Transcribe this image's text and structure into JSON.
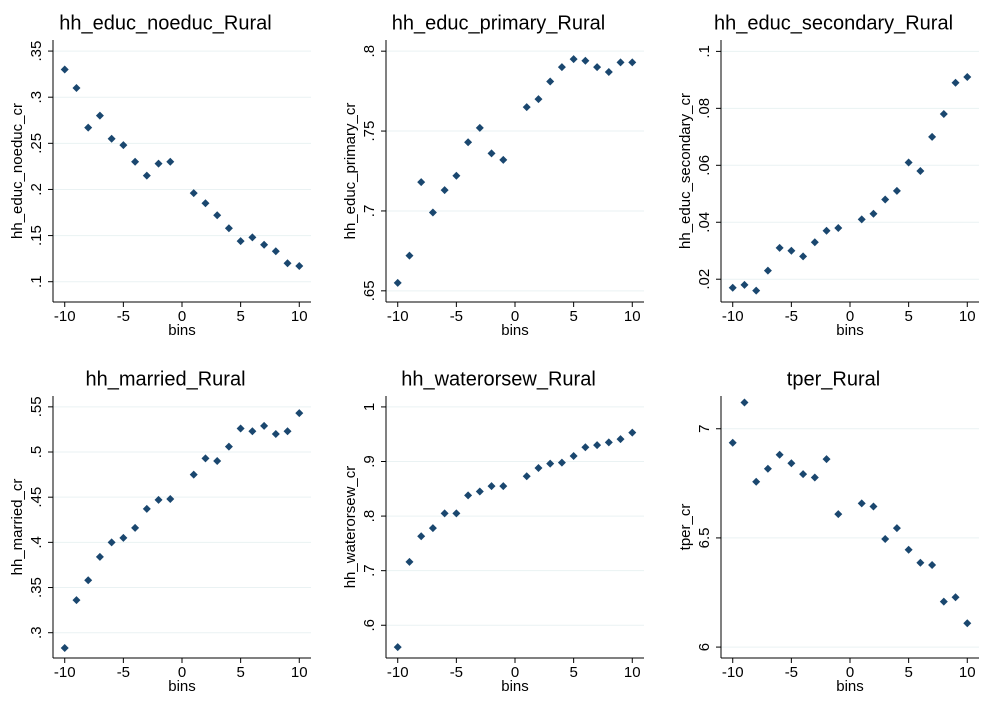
{
  "chart_data": [
    {
      "type": "scatter",
      "title": "hh_educ_noeduc_Rural",
      "x_label": "bins",
      "y_label": "hh_educ_noeduc_cr",
      "color": "#1a476f",
      "grid": true,
      "x": [
        -10,
        -9,
        -8,
        -7,
        -6,
        -5,
        -4,
        -3,
        -2,
        -1,
        1,
        2,
        3,
        4,
        5,
        6,
        7,
        8,
        9,
        10
      ],
      "values": [
        0.33,
        0.31,
        0.267,
        0.28,
        0.255,
        0.248,
        0.23,
        0.215,
        0.228,
        0.23,
        0.196,
        0.185,
        0.172,
        0.158,
        0.144,
        0.148,
        0.14,
        0.133,
        0.12,
        0.117
      ],
      "xlim": [
        -11,
        11
      ],
      "xticks": [
        -10,
        -5,
        0,
        5,
        10
      ],
      "ylim": [
        0.078,
        0.362
      ],
      "yticks": [
        {
          "value": 0.1,
          "label": ".1"
        },
        {
          "value": 0.15,
          "label": ".15"
        },
        {
          "value": 0.2,
          "label": ".2"
        },
        {
          "value": 0.25,
          "label": ".25"
        },
        {
          "value": 0.3,
          "label": ".3"
        },
        {
          "value": 0.35,
          "label": ".35"
        }
      ]
    },
    {
      "type": "scatter",
      "title": "hh_educ_primary_Rural",
      "x_label": "bins",
      "y_label": "hh_educ_primary_cr",
      "color": "#1a476f",
      "grid": true,
      "x": [
        -10,
        -9,
        -8,
        -7,
        -6,
        -5,
        -4,
        -3,
        -2,
        -1,
        1,
        2,
        3,
        4,
        5,
        6,
        7,
        8,
        9,
        10
      ],
      "values": [
        0.655,
        0.672,
        0.718,
        0.699,
        0.713,
        0.722,
        0.743,
        0.752,
        0.736,
        0.732,
        0.765,
        0.77,
        0.781,
        0.79,
        0.795,
        0.794,
        0.79,
        0.787,
        0.793,
        0.793
      ],
      "xlim": [
        -11,
        11
      ],
      "xticks": [
        -10,
        -5,
        0,
        5,
        10
      ],
      "ylim": [
        0.643,
        0.807
      ],
      "yticks": [
        {
          "value": 0.65,
          "label": ".65"
        },
        {
          "value": 0.7,
          "label": ".7"
        },
        {
          "value": 0.75,
          "label": ".75"
        },
        {
          "value": 0.8,
          "label": ".8"
        }
      ]
    },
    {
      "type": "scatter",
      "title": "hh_educ_secondary_Rural",
      "x_label": "bins",
      "y_label": "hh_educ_secondary_cr",
      "color": "#1a476f",
      "grid": true,
      "x": [
        -10,
        -9,
        -8,
        -7,
        -6,
        -5,
        -4,
        -3,
        -2,
        -1,
        1,
        2,
        3,
        4,
        5,
        6,
        7,
        8,
        9,
        10
      ],
      "values": [
        0.017,
        0.018,
        0.016,
        0.023,
        0.031,
        0.03,
        0.028,
        0.033,
        0.037,
        0.038,
        0.041,
        0.043,
        0.048,
        0.051,
        0.061,
        0.058,
        0.07,
        0.078,
        0.089,
        0.091
      ],
      "xlim": [
        -11,
        11
      ],
      "xticks": [
        -10,
        -5,
        0,
        5,
        10
      ],
      "ylim": [
        0.012,
        0.104
      ],
      "yticks": [
        {
          "value": 0.02,
          "label": ".02"
        },
        {
          "value": 0.04,
          "label": ".04"
        },
        {
          "value": 0.06,
          "label": ".06"
        },
        {
          "value": 0.08,
          "label": ".08"
        },
        {
          "value": 0.1,
          "label": ".1"
        }
      ]
    },
    {
      "type": "scatter",
      "title": "hh_married_Rural",
      "x_label": "bins",
      "y_label": "hh_married_cr",
      "color": "#1a476f",
      "grid": true,
      "x": [
        -10,
        -9,
        -8,
        -7,
        -6,
        -5,
        -4,
        -3,
        -2,
        -1,
        1,
        2,
        3,
        4,
        5,
        6,
        7,
        8,
        9,
        10
      ],
      "values": [
        0.283,
        0.336,
        0.358,
        0.384,
        0.4,
        0.405,
        0.416,
        0.437,
        0.447,
        0.448,
        0.475,
        0.493,
        0.49,
        0.506,
        0.526,
        0.523,
        0.529,
        0.52,
        0.523,
        0.543
      ],
      "xlim": [
        -11,
        11
      ],
      "xticks": [
        -10,
        -5,
        0,
        5,
        10
      ],
      "ylim": [
        0.272,
        0.562
      ],
      "yticks": [
        {
          "value": 0.3,
          "label": ".3"
        },
        {
          "value": 0.35,
          "label": ".35"
        },
        {
          "value": 0.4,
          "label": ".4"
        },
        {
          "value": 0.45,
          "label": ".45"
        },
        {
          "value": 0.5,
          "label": ".5"
        },
        {
          "value": 0.55,
          "label": ".55"
        }
      ]
    },
    {
      "type": "scatter",
      "title": "hh_waterorsew_Rural",
      "x_label": "bins",
      "y_label": "hh_waterorsew_cr",
      "color": "#1a476f",
      "grid": true,
      "x": [
        -10,
        -9,
        -8,
        -7,
        -6,
        -5,
        -4,
        -3,
        -2,
        -1,
        1,
        2,
        3,
        4,
        5,
        6,
        7,
        8,
        9,
        10
      ],
      "values": [
        0.56,
        0.716,
        0.763,
        0.778,
        0.805,
        0.805,
        0.838,
        0.845,
        0.855,
        0.855,
        0.873,
        0.888,
        0.896,
        0.898,
        0.91,
        0.926,
        0.93,
        0.935,
        0.941,
        0.953
      ],
      "xlim": [
        -11,
        11
      ],
      "xticks": [
        -10,
        -5,
        0,
        5,
        10
      ],
      "ylim": [
        0.54,
        1.02
      ],
      "yticks": [
        {
          "value": 0.6,
          "label": ".6"
        },
        {
          "value": 0.7,
          "label": ".7"
        },
        {
          "value": 0.8,
          "label": ".8"
        },
        {
          "value": 0.9,
          "label": ".9"
        },
        1
      ]
    },
    {
      "type": "scatter",
      "title": "tper_Rural",
      "x_label": "bins",
      "y_label": "tper_cr",
      "color": "#1a476f",
      "grid": true,
      "x": [
        -10,
        -9,
        -8,
        -7,
        -6,
        -5,
        -4,
        -3,
        -2,
        -1,
        1,
        2,
        3,
        4,
        5,
        6,
        7,
        8,
        9,
        10
      ],
      "values": [
        6.936,
        7.12,
        6.757,
        6.817,
        6.881,
        6.842,
        6.792,
        6.777,
        6.861,
        6.609,
        6.658,
        6.644,
        6.495,
        6.545,
        6.446,
        6.386,
        6.376,
        6.208,
        6.228,
        6.109
      ],
      "xlim": [
        -11,
        11
      ],
      "xticks": [
        -10,
        -5,
        0,
        5,
        10
      ],
      "ylim": [
        5.95,
        7.15
      ],
      "yticks": [
        6,
        6.5,
        7
      ]
    }
  ]
}
